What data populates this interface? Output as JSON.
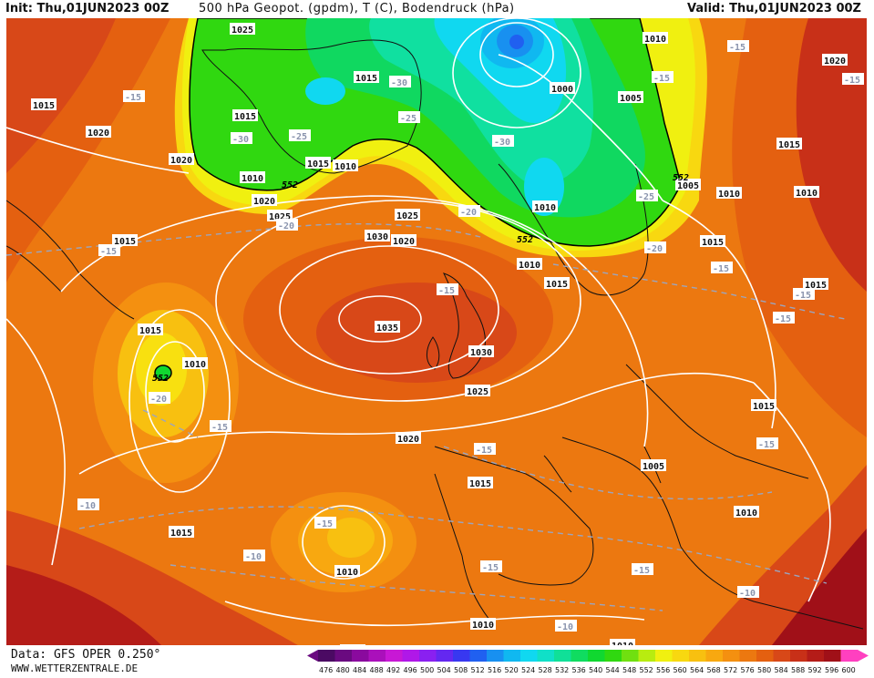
{
  "header": {
    "init": "Init: Thu,01JUN2023 00Z",
    "title": "500 hPa Geopot. (gpdm), T (C), Bodendruck (hPa)",
    "valid": "Valid: Thu,01JUN2023 00Z"
  },
  "footer": {
    "data_source": "Data: GFS OPER 0.250°",
    "website": "WWW.WETTERZENTRALE.DE"
  },
  "legend": {
    "values": [
      "476",
      "480",
      "484",
      "488",
      "492",
      "496",
      "500",
      "504",
      "508",
      "512",
      "516",
      "520",
      "524",
      "528",
      "532",
      "536",
      "540",
      "544",
      "548",
      "552",
      "556",
      "560",
      "564",
      "568",
      "572",
      "576",
      "580",
      "584",
      "588",
      "592",
      "596",
      "600"
    ],
    "colors": [
      "#4b0a63",
      "#6a0a80",
      "#8a0a9e",
      "#aa10bb",
      "#c818d5",
      "#b018e8",
      "#8a20f0",
      "#6428f0",
      "#3838f0",
      "#2060f0",
      "#1890f0",
      "#10b8f0",
      "#10d8f0",
      "#10e0c8",
      "#10e098",
      "#10dc60",
      "#10d830",
      "#30d810",
      "#70e010",
      "#b8ec10",
      "#f0f010",
      "#f8d810",
      "#f8c010",
      "#f8a810",
      "#f49010",
      "#ec7810",
      "#e46010",
      "#d84818",
      "#c83018",
      "#b41c18",
      "#a01018",
      "#ff40c0"
    ],
    "arrow_left_color": "#6a0a80",
    "arrow_right_color": "#ff40c0"
  },
  "map_labels": {
    "pressure": [
      {
        "text": "1025"
      },
      {
        "text": "1015"
      },
      {
        "text": "1015"
      },
      {
        "text": "1020"
      },
      {
        "text": "1015"
      },
      {
        "text": "1010"
      },
      {
        "text": "1015"
      },
      {
        "text": "1010"
      },
      {
        "text": "1020"
      },
      {
        "text": "1020"
      },
      {
        "text": "1025"
      },
      {
        "text": "1025"
      },
      {
        "text": "1030"
      },
      {
        "text": "1035"
      },
      {
        "text": "1030"
      },
      {
        "text": "1025"
      },
      {
        "text": "1020"
      },
      {
        "text": "1015"
      },
      {
        "text": "1010"
      },
      {
        "text": "1015"
      },
      {
        "text": "1010"
      },
      {
        "text": "1015"
      },
      {
        "text": "1015"
      },
      {
        "text": "1010"
      },
      {
        "text": "1010"
      },
      {
        "text": "1010"
      },
      {
        "text": "1000"
      },
      {
        "text": "1005"
      },
      {
        "text": "1010"
      },
      {
        "text": "1020"
      },
      {
        "text": "1015"
      },
      {
        "text": "1005"
      },
      {
        "text": "1010"
      },
      {
        "text": "1010"
      },
      {
        "text": "1015"
      },
      {
        "text": "1015"
      },
      {
        "text": "1015"
      },
      {
        "text": "1015"
      },
      {
        "text": "1005"
      },
      {
        "text": "1010"
      },
      {
        "text": "1015"
      },
      {
        "text": "1020"
      },
      {
        "text": "1010"
      }
    ],
    "temperature": [
      {
        "text": "-15"
      },
      {
        "text": "-15"
      },
      {
        "text": "-30"
      },
      {
        "text": "-25"
      },
      {
        "text": "-30"
      },
      {
        "text": "-25"
      },
      {
        "text": "-30"
      },
      {
        "text": "-20"
      },
      {
        "text": "-20"
      },
      {
        "text": "-15"
      },
      {
        "text": "-20"
      },
      {
        "text": "-15"
      },
      {
        "text": "-10"
      },
      {
        "text": "-15"
      },
      {
        "text": "-15"
      },
      {
        "text": "-10"
      },
      {
        "text": "-15"
      },
      {
        "text": "-15"
      },
      {
        "text": "-10"
      },
      {
        "text": "-25"
      },
      {
        "text": "-20"
      },
      {
        "text": "-15"
      },
      {
        "text": "-15"
      },
      {
        "text": "-15"
      },
      {
        "text": "-15"
      },
      {
        "text": "-15"
      },
      {
        "text": "-10"
      },
      {
        "text": "-15"
      },
      {
        "text": "-15"
      }
    ],
    "geopotential": [
      {
        "text": "552"
      },
      {
        "text": "552"
      },
      {
        "text": "552"
      },
      {
        "text": "552"
      }
    ]
  }
}
